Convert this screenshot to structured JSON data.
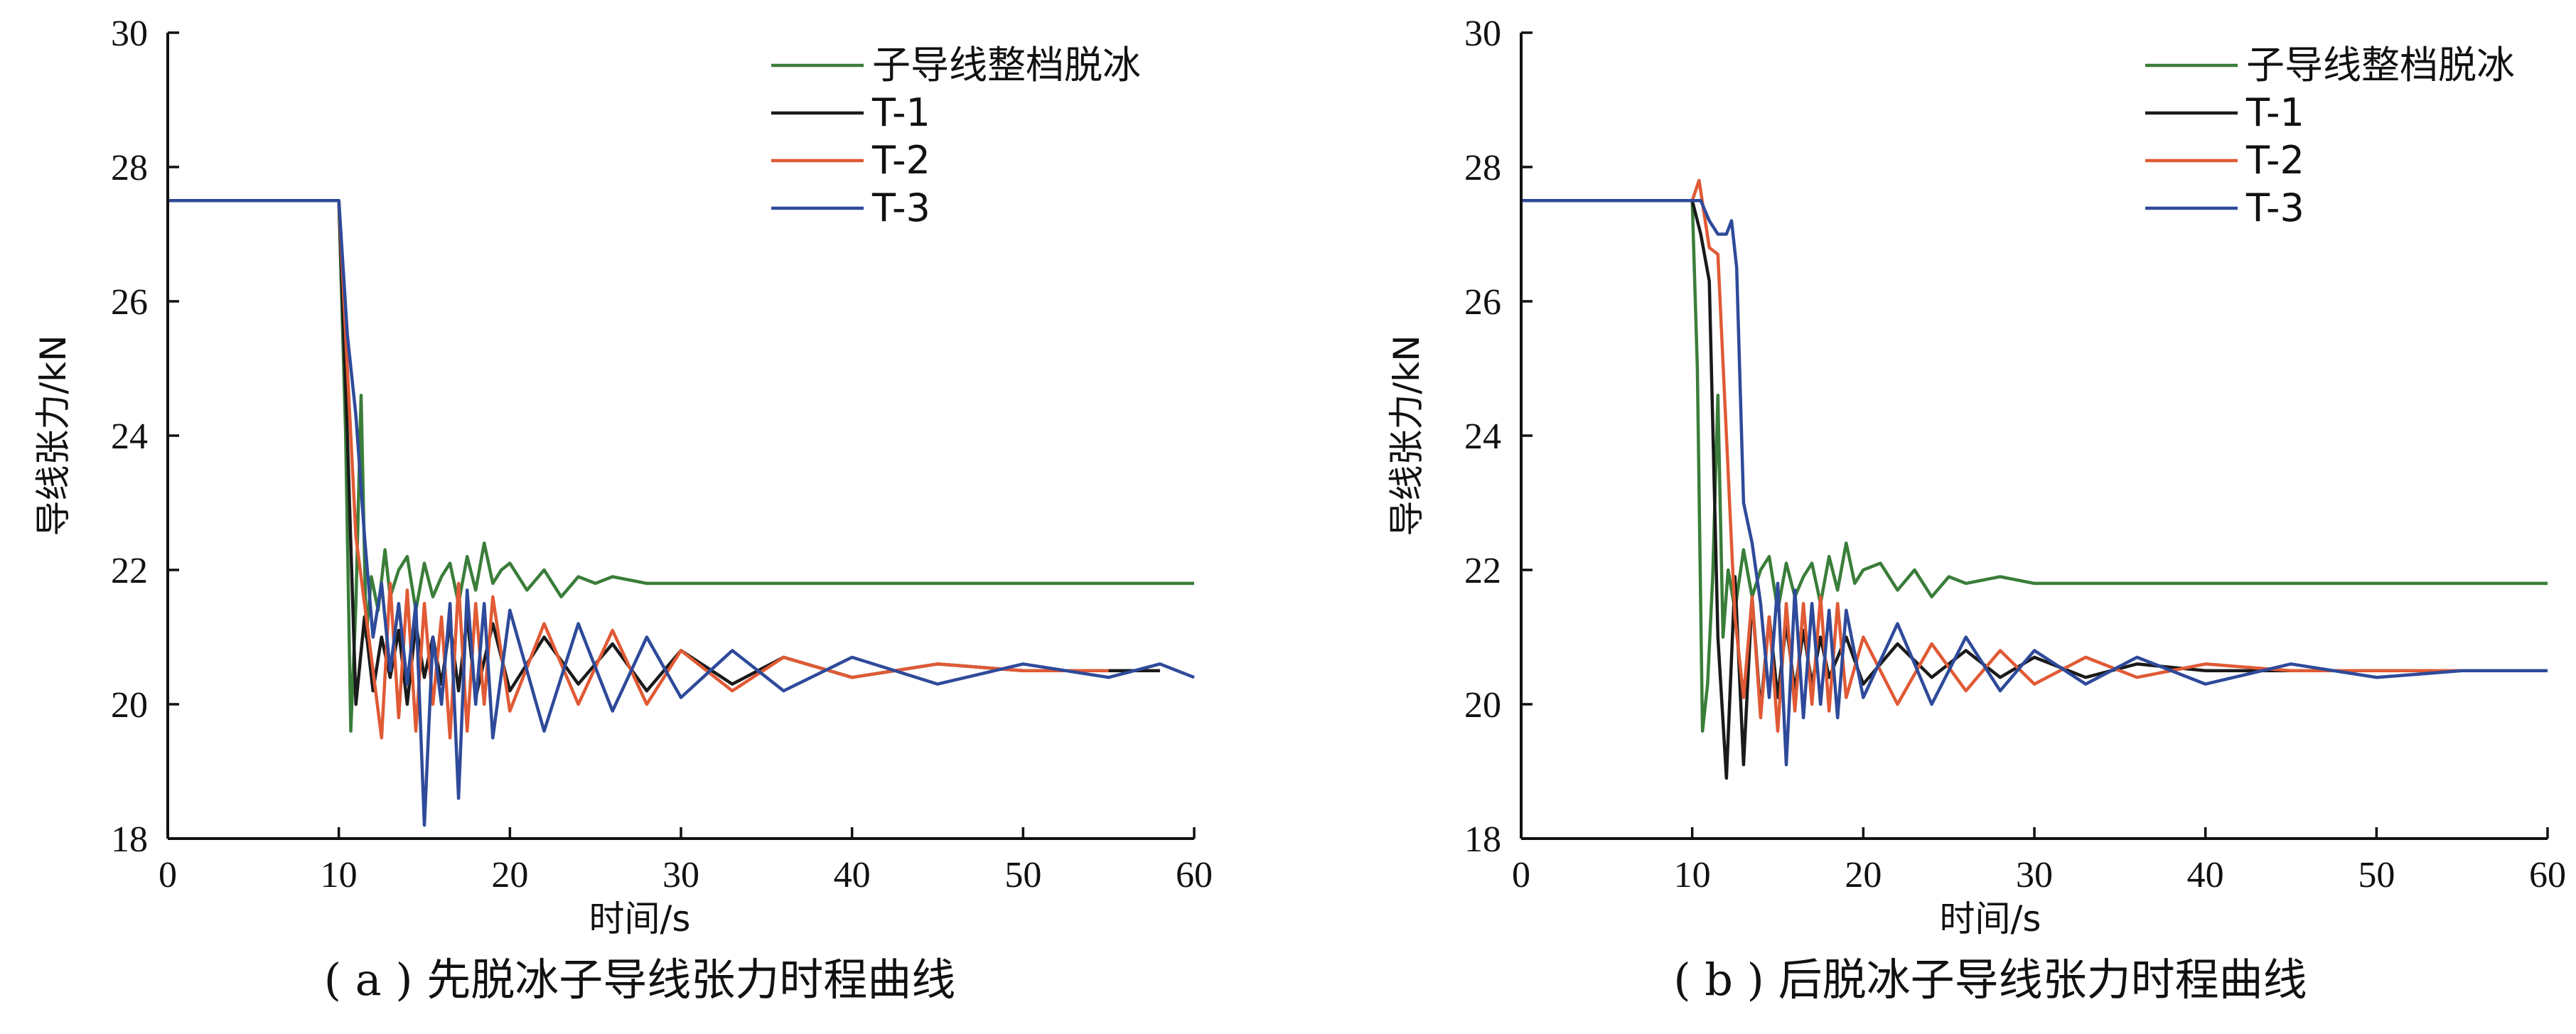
{
  "chart_data": [
    {
      "type": "line",
      "caption": "( a ) 先脱冰子导线张力时程曲线",
      "xlabel": "时间/s",
      "ylabel": "导线张力/kN",
      "xlim": [
        0,
        60
      ],
      "ylim": [
        18,
        30
      ],
      "xticks": [
        "0",
        "10",
        "20",
        "30",
        "40",
        "50",
        "60"
      ],
      "yticks": [
        "18",
        "20",
        "22",
        "24",
        "26",
        "28",
        "30"
      ],
      "grid": false,
      "legend_position": "top-right",
      "series": [
        {
          "name": "子导线整档脱冰",
          "color": "#3a7d3a",
          "x": [
            0,
            10,
            10.4,
            10.7,
            11.0,
            11.3,
            11.6,
            11.9,
            12.3,
            12.7,
            13.0,
            13.5,
            14,
            14.5,
            15,
            15.5,
            16,
            16.5,
            17,
            17.5,
            18,
            18.5,
            19,
            19.5,
            20,
            21,
            22,
            23,
            24,
            25,
            26,
            28,
            30,
            35,
            40,
            45,
            50,
            55,
            60
          ],
          "y": [
            27.5,
            27.5,
            24.0,
            19.6,
            21.5,
            24.6,
            21.0,
            21.9,
            21.4,
            22.3,
            21.6,
            22.0,
            22.2,
            21.4,
            22.1,
            21.6,
            21.9,
            22.1,
            21.5,
            22.2,
            21.7,
            22.4,
            21.8,
            22.0,
            22.1,
            21.7,
            22.0,
            21.6,
            21.9,
            21.8,
            21.9,
            21.8,
            21.8,
            21.8,
            21.8,
            21.8,
            21.8,
            21.8,
            21.8
          ]
        },
        {
          "name": "T-1",
          "color": "#1a1a1a",
          "x": [
            0,
            10,
            10.5,
            11,
            11.5,
            12,
            12.5,
            13,
            13.5,
            14,
            14.5,
            15,
            15.5,
            16,
            16.5,
            17,
            17.5,
            18,
            19,
            20,
            22,
            24,
            26,
            28,
            30,
            33,
            36,
            40,
            45,
            50,
            55,
            58
          ],
          "y": [
            27.5,
            27.5,
            24.0,
            20.0,
            21.3,
            20.2,
            21.0,
            20.4,
            21.1,
            20.0,
            21.2,
            20.4,
            21.0,
            20.3,
            21.2,
            20.2,
            21.3,
            20.1,
            21.2,
            20.2,
            21.0,
            20.3,
            20.9,
            20.2,
            20.8,
            20.3,
            20.7,
            20.4,
            20.6,
            20.5,
            20.5,
            20.5
          ]
        },
        {
          "name": "T-2",
          "color": "#e05a35",
          "x": [
            0,
            10,
            10.5,
            11,
            11.5,
            12,
            12.5,
            13,
            13.5,
            14,
            14.5,
            15,
            15.5,
            16,
            16.5,
            17,
            17.5,
            18,
            18.5,
            19,
            20,
            22,
            24,
            26,
            28,
            30,
            33,
            36,
            40,
            45,
            50,
            55
          ],
          "y": [
            27.5,
            27.5,
            25.0,
            22.5,
            21.5,
            20.5,
            19.5,
            21.8,
            19.8,
            21.7,
            19.6,
            21.5,
            20.0,
            21.3,
            19.5,
            21.8,
            19.6,
            21.5,
            20.0,
            21.6,
            19.9,
            21.2,
            20.0,
            21.1,
            20.0,
            20.8,
            20.2,
            20.7,
            20.4,
            20.6,
            20.5,
            20.5
          ]
        },
        {
          "name": "T-3",
          "color": "#2e4a9a",
          "x": [
            0,
            10,
            10.5,
            11,
            11.5,
            12,
            12.5,
            13,
            13.5,
            14,
            14.5,
            15,
            15.5,
            16,
            16.5,
            17,
            17.5,
            18,
            18.5,
            19,
            20,
            22,
            24,
            26,
            28,
            30,
            33,
            36,
            40,
            45,
            50,
            55,
            58,
            60
          ],
          "y": [
            27.5,
            27.5,
            25.5,
            24.3,
            22.5,
            21.0,
            21.8,
            20.5,
            21.5,
            20.3,
            21.5,
            18.2,
            21.0,
            20.0,
            21.5,
            18.6,
            21.7,
            20.0,
            21.5,
            19.5,
            21.4,
            19.6,
            21.2,
            19.9,
            21.0,
            20.1,
            20.8,
            20.2,
            20.7,
            20.3,
            20.6,
            20.4,
            20.6,
            20.4
          ]
        }
      ]
    },
    {
      "type": "line",
      "caption": "( b ) 后脱冰子导线张力时程曲线",
      "xlabel": "时间/s",
      "ylabel": "导线张力/kN",
      "xlim": [
        0,
        60
      ],
      "ylim": [
        18,
        30
      ],
      "xticks": [
        "0",
        "10",
        "20",
        "30",
        "40",
        "50",
        "60"
      ],
      "yticks": [
        "18",
        "20",
        "22",
        "24",
        "26",
        "28",
        "30"
      ],
      "grid": false,
      "legend_position": "top-right",
      "series": [
        {
          "name": "子导线整档脱冰",
          "color": "#3a7d3a",
          "x": [
            0,
            10,
            10.3,
            10.6,
            10.9,
            11.2,
            11.5,
            11.8,
            12.1,
            12.5,
            13,
            13.5,
            14,
            14.5,
            15,
            15.5,
            16,
            16.5,
            17,
            17.5,
            18,
            18.5,
            19,
            19.5,
            20,
            21,
            22,
            23,
            24,
            25,
            26,
            28,
            30,
            35,
            40,
            45,
            50,
            55,
            60
          ],
          "y": [
            27.5,
            27.5,
            25.0,
            19.6,
            20.3,
            21.9,
            24.6,
            21.0,
            22.0,
            21.4,
            22.3,
            21.6,
            22.0,
            22.2,
            21.4,
            22.1,
            21.6,
            21.9,
            22.1,
            21.5,
            22.2,
            21.7,
            22.4,
            21.8,
            22.0,
            22.1,
            21.7,
            22.0,
            21.6,
            21.9,
            21.8,
            21.9,
            21.8,
            21.8,
            21.8,
            21.8,
            21.8,
            21.8,
            21.8
          ]
        },
        {
          "name": "T-1",
          "color": "#1a1a1a",
          "x": [
            0,
            10,
            10.5,
            11,
            11.5,
            12,
            12.5,
            13,
            13.5,
            14,
            14.5,
            15,
            15.5,
            16,
            16.5,
            17,
            17.5,
            18,
            19,
            20,
            22,
            24,
            26,
            28,
            30,
            33,
            36,
            40,
            45,
            50,
            55,
            58
          ],
          "y": [
            27.5,
            27.5,
            27.0,
            26.3,
            21.0,
            18.9,
            21.9,
            19.1,
            21.6,
            19.9,
            21.3,
            20.1,
            21.2,
            20.2,
            21.1,
            20.3,
            21.0,
            20.4,
            21.0,
            20.3,
            20.9,
            20.4,
            20.8,
            20.4,
            20.7,
            20.4,
            20.6,
            20.5,
            20.5,
            20.5,
            20.5,
            20.5
          ]
        },
        {
          "name": "T-2",
          "color": "#e05a35",
          "x": [
            0,
            10,
            10.4,
            11,
            11.5,
            12,
            12.5,
            13,
            13.5,
            14,
            14.5,
            15,
            15.5,
            16,
            16.5,
            17,
            17.5,
            18,
            18.5,
            19,
            20,
            22,
            24,
            26,
            28,
            30,
            33,
            36,
            40,
            45,
            50,
            55
          ],
          "y": [
            27.5,
            27.5,
            27.8,
            26.8,
            26.7,
            24.0,
            21.3,
            20.1,
            21.6,
            19.8,
            21.3,
            19.6,
            21.5,
            19.9,
            21.5,
            20.0,
            21.6,
            19.9,
            21.5,
            20.1,
            21.0,
            20.0,
            20.9,
            20.2,
            20.8,
            20.3,
            20.7,
            20.4,
            20.6,
            20.5,
            20.5,
            20.5
          ]
        },
        {
          "name": "T-3",
          "color": "#2e4a9a",
          "x": [
            0,
            10,
            10.5,
            11,
            11.5,
            12,
            12.3,
            12.6,
            13,
            13.5,
            14,
            14.5,
            15,
            15.5,
            16,
            16.5,
            17,
            17.5,
            18,
            18.5,
            19,
            20,
            22,
            24,
            26,
            28,
            30,
            33,
            36,
            40,
            45,
            50,
            55,
            58,
            60
          ],
          "y": [
            27.5,
            27.5,
            27.5,
            27.2,
            27.0,
            27.0,
            27.2,
            26.5,
            23.0,
            22.4,
            21.5,
            20.1,
            21.8,
            19.1,
            21.7,
            19.8,
            21.5,
            20.0,
            21.4,
            19.8,
            21.4,
            20.1,
            21.2,
            20.0,
            21.0,
            20.2,
            20.8,
            20.3,
            20.7,
            20.3,
            20.6,
            20.4,
            20.5,
            20.5,
            20.5
          ]
        }
      ]
    }
  ]
}
